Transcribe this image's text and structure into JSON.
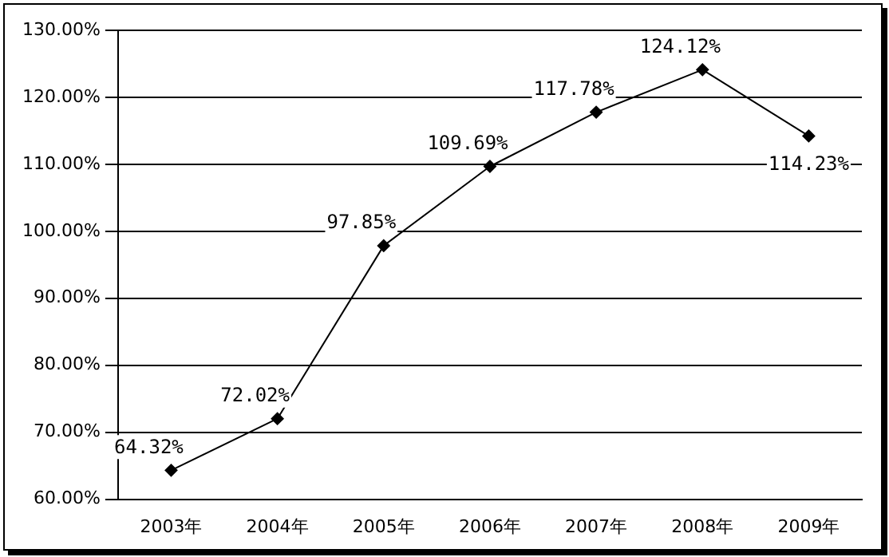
{
  "chart_data": {
    "type": "line",
    "categories": [
      "2003年",
      "2004年",
      "2005年",
      "2006年",
      "2007年",
      "2008年",
      "2009年"
    ],
    "series": [
      {
        "color": "#000000",
        "values": [
          64.32,
          72.02,
          97.85,
          109.69,
          117.78,
          124.12,
          114.23
        ],
        "value_labels": [
          "64.32%",
          "72.02%",
          "97.85%",
          "109.69%",
          "117.78%",
          "124.12%",
          "114.23%"
        ]
      }
    ],
    "ylim": [
      60,
      130
    ],
    "yticks": [
      {
        "value": 60,
        "label": "60.00%"
      },
      {
        "value": 70,
        "label": "70.00%"
      },
      {
        "value": 80,
        "label": "80.00%"
      },
      {
        "value": 90,
        "label": "90.00%"
      },
      {
        "value": 100,
        "label": "100.00%"
      },
      {
        "value": 110,
        "label": "110.00%"
      },
      {
        "value": 120,
        "label": "120.00%"
      },
      {
        "value": 130,
        "label": "130.00%"
      }
    ],
    "grid": "y",
    "marker": "diamond",
    "line_style": "solid",
    "legend": false
  }
}
